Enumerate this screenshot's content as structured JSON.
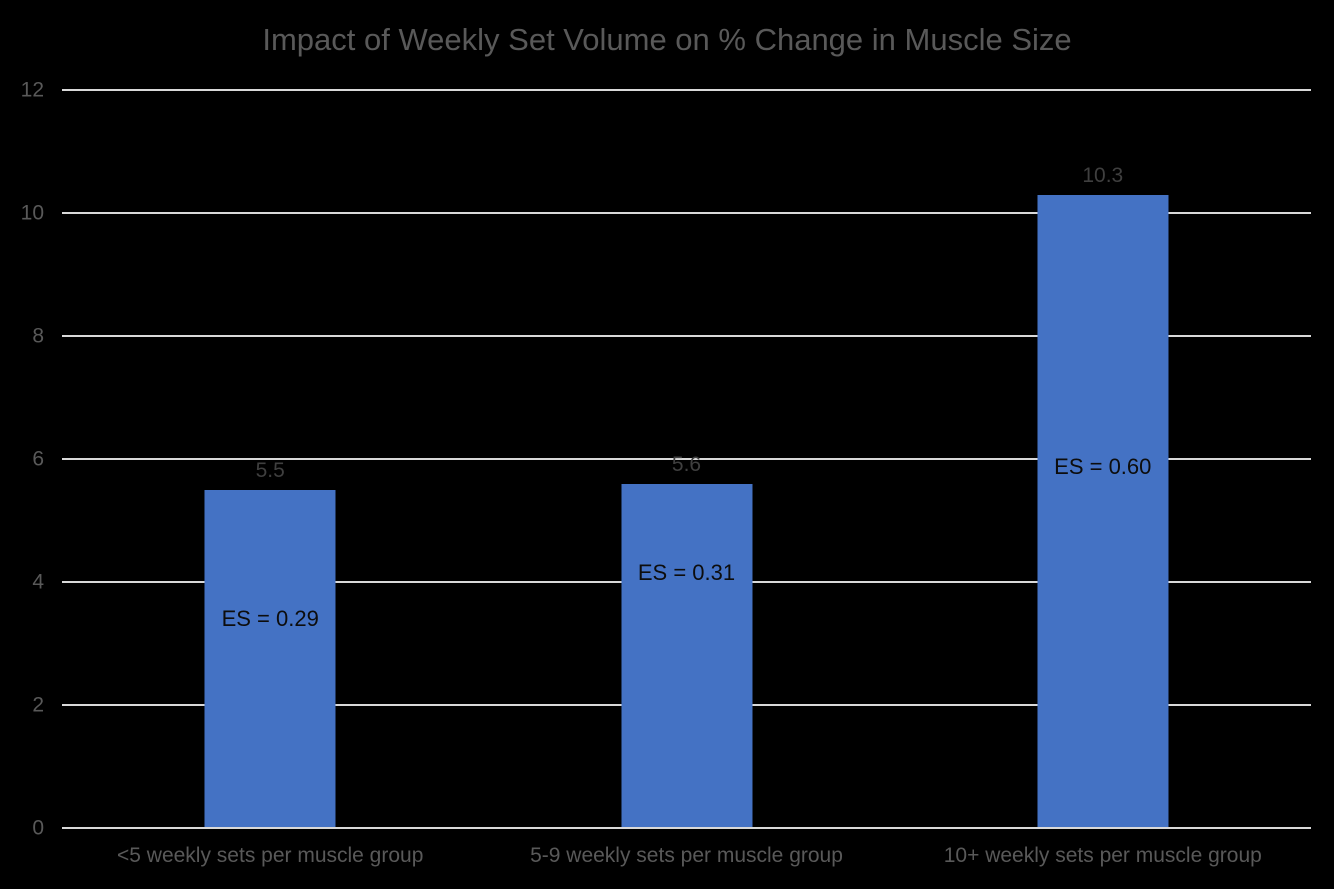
{
  "chart_data": {
    "type": "bar",
    "title": "Impact of Weekly Set Volume on % Change in Muscle Size",
    "categories": [
      "<5 weekly sets per muscle group",
      "5-9 weekly sets per muscle group",
      "10+ weekly sets per muscle group"
    ],
    "values": [
      5.5,
      5.6,
      10.3
    ],
    "value_labels": [
      "5.5",
      "5.6",
      "10.3"
    ],
    "bar_annotations": [
      "ES = 0.29",
      "ES = 0.31",
      "ES = 0.60"
    ],
    "xlabel": "",
    "ylabel": "",
    "ylim": [
      0,
      12
    ],
    "yticks": [
      0,
      2,
      4,
      6,
      8,
      10,
      12
    ],
    "grid": true,
    "legend": false,
    "colors": {
      "background": "#000000",
      "bar": "#4472C4",
      "gridline": "#D9D9D9",
      "axis_line": "#D9D9D9",
      "title_text": "#595959",
      "tick_text": "#595959",
      "value_label_text": "#3F3F3F",
      "annotation_text": "#0D0D0D"
    }
  }
}
